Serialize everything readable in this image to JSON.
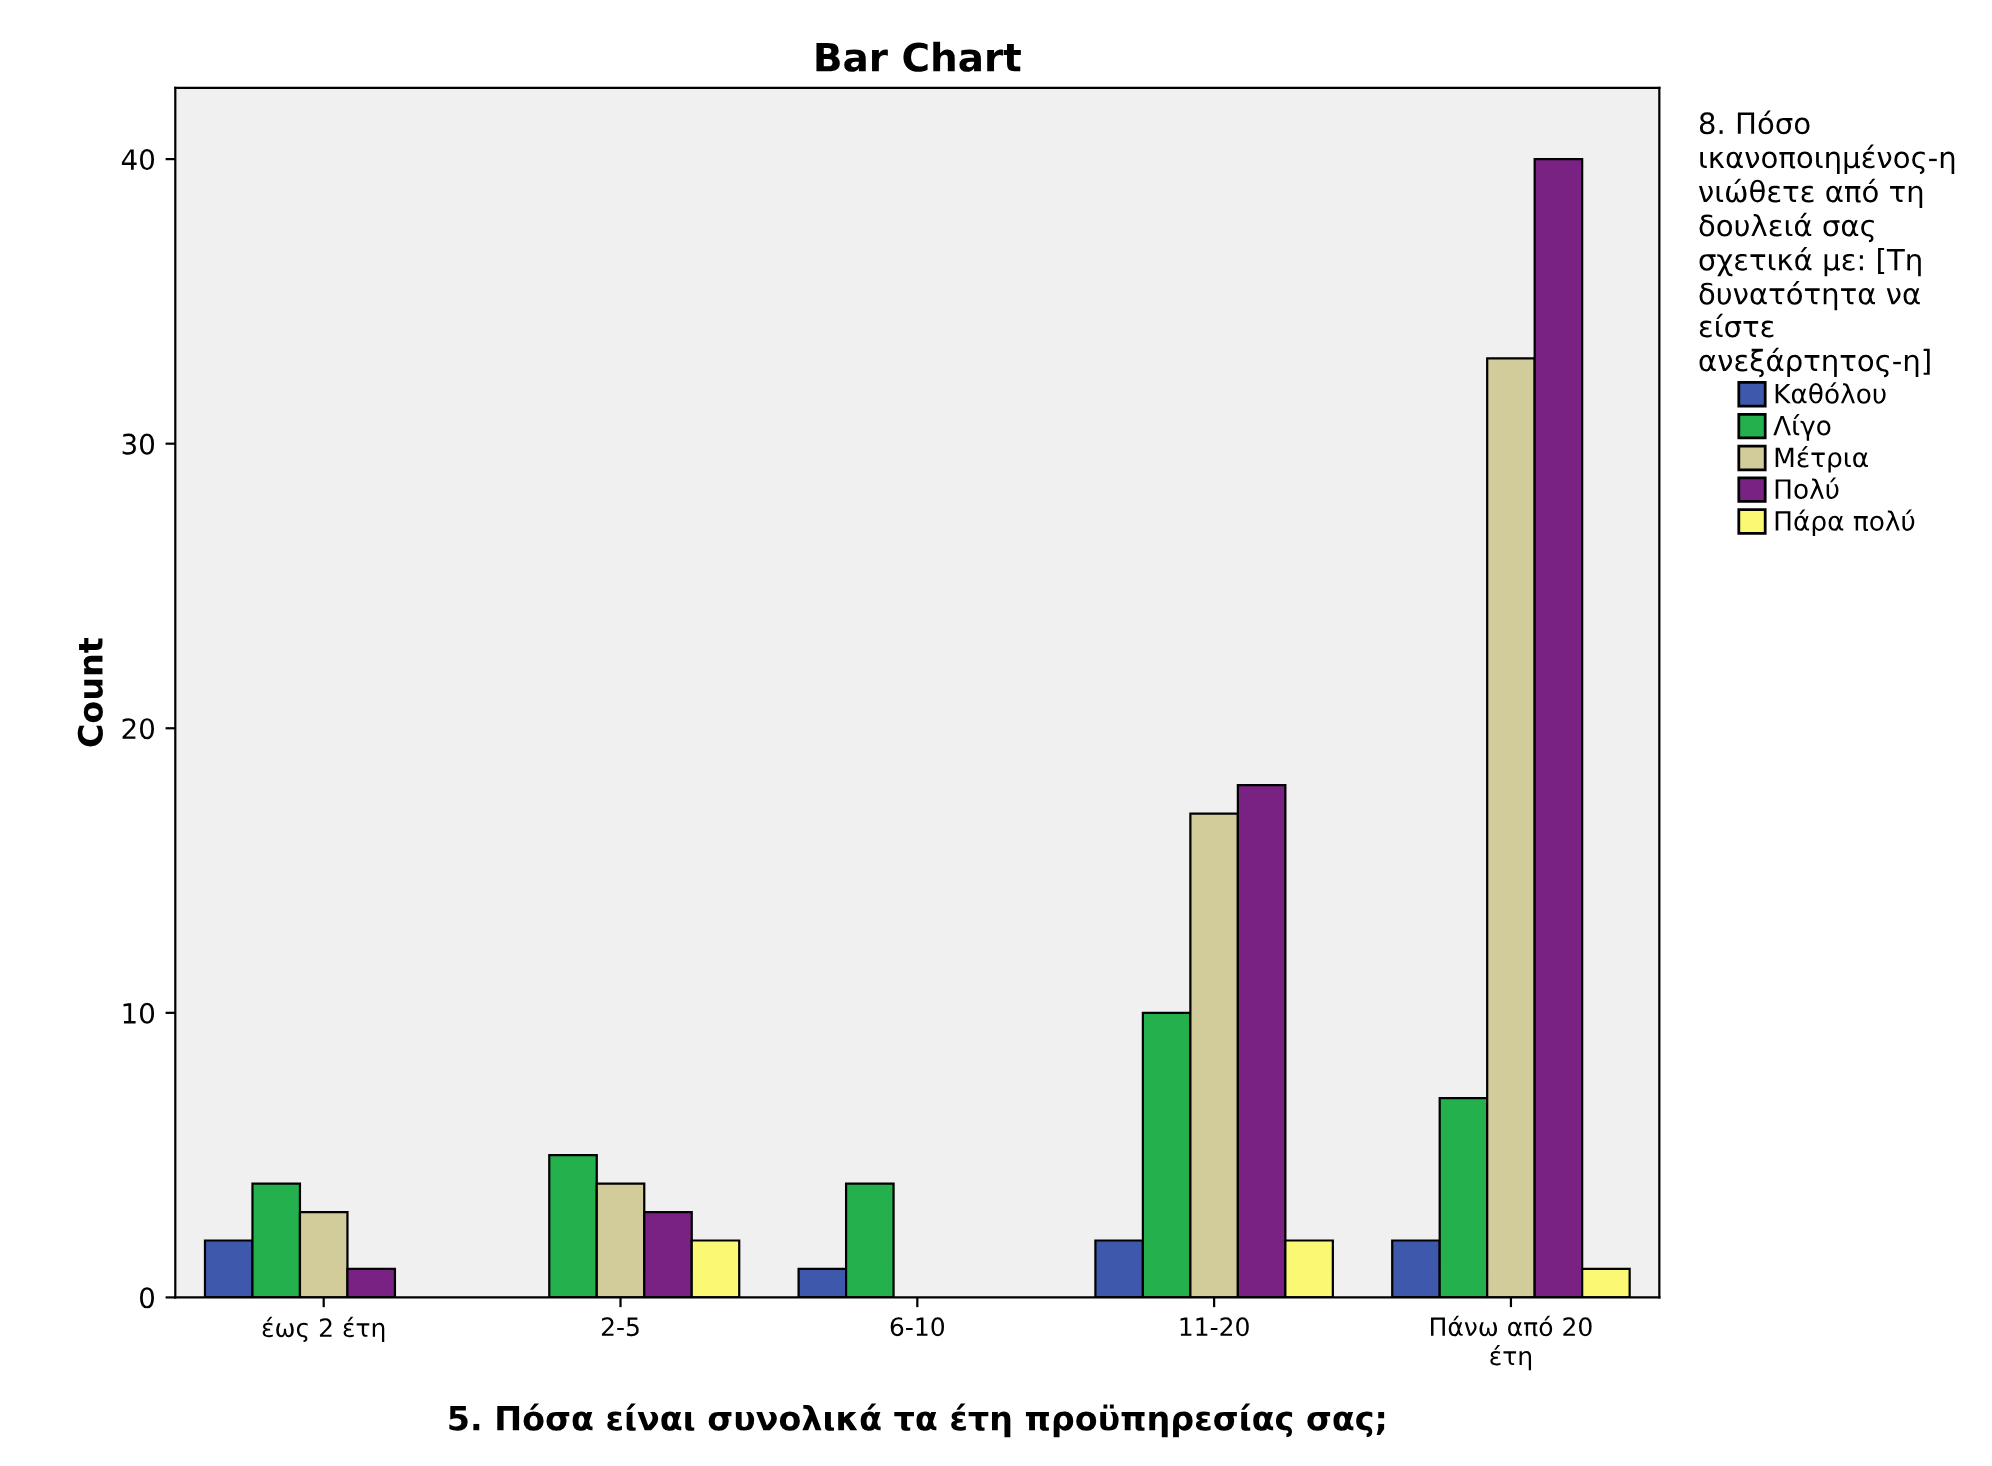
{
  "chart_data": {
    "type": "bar",
    "title": "Bar Chart",
    "xlabel": "5. Πόσα είναι συνολικά τα έτη προϋπηρεσίας σας;",
    "ylabel": "Count",
    "legend_title": "8. Πόσο\nικανοποιημένος-η\nνιώθετε από τη\nδουλειά σας\nσχετικά με: [Τη\nδυνατότητα να\nείστε\nανεξάρτητος-η]",
    "categories": [
      "έως 2 έτη",
      "2-5",
      "6-10",
      "11-20",
      "Πάνω από 20\nέτη"
    ],
    "series": [
      {
        "name": "Καθόλου",
        "color": "#3e58ac",
        "values": [
          2,
          null,
          1,
          2,
          2
        ]
      },
      {
        "name": "Λίγο",
        "color": "#24b14d",
        "values": [
          4,
          5,
          4,
          10,
          7
        ]
      },
      {
        "name": "Μέτρια",
        "color": "#d2cc9a",
        "values": [
          3,
          4,
          null,
          17,
          33
        ]
      },
      {
        "name": "Πολύ",
        "color": "#7a2283",
        "values": [
          1,
          3,
          null,
          18,
          40
        ]
      },
      {
        "name": "Πάρα πολύ",
        "color": "#fbf873",
        "values": [
          null,
          2,
          null,
          2,
          1
        ]
      }
    ],
    "ylim": [
      0,
      42.5
    ],
    "yticks": [
      0,
      10,
      20,
      30,
      40
    ],
    "grid": false,
    "legend": "right"
  }
}
